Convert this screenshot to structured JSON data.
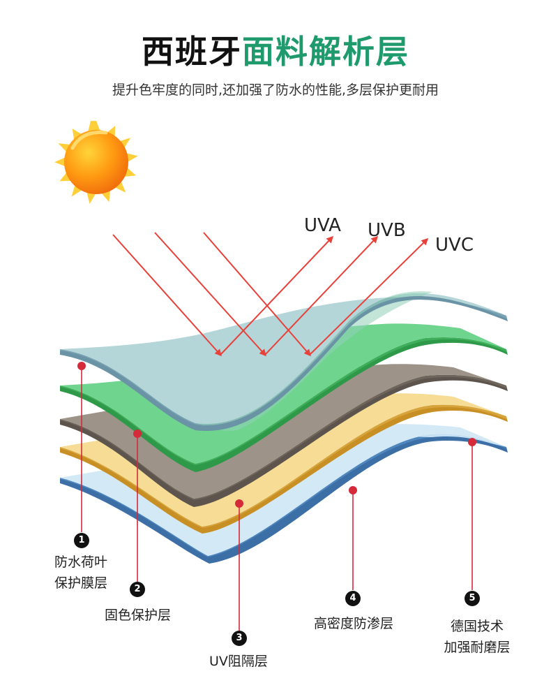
{
  "header": {
    "title_dark": "西班牙",
    "title_green": "面料解析层",
    "subtitle": "提升色牢度的同时,还加强了防水的性能,多层保护更耐用"
  },
  "rays": {
    "uva": "UVA",
    "uvb": "UVB",
    "uvc": "UVC"
  },
  "layers": [
    {
      "number": "1",
      "line1": "防水荷叶",
      "line2": "保护膜层",
      "color": "#b6d8d8"
    },
    {
      "number": "2",
      "line1": "固色保护层",
      "line2": "",
      "color": "#6cd08a"
    },
    {
      "number": "3",
      "line1": "UV阻隔层",
      "line2": "",
      "color": "#9c9288"
    },
    {
      "number": "4",
      "line1": "高密度防渗层",
      "line2": "",
      "color": "#f4d88e"
    },
    {
      "number": "5",
      "line1": "德国技术",
      "line2": "加强耐磨层",
      "color": "#c4e0f2"
    }
  ],
  "colors": {
    "title_green": "#1e9a6c",
    "ray_red": "#e8403a",
    "pin_red": "#d42a3a"
  }
}
